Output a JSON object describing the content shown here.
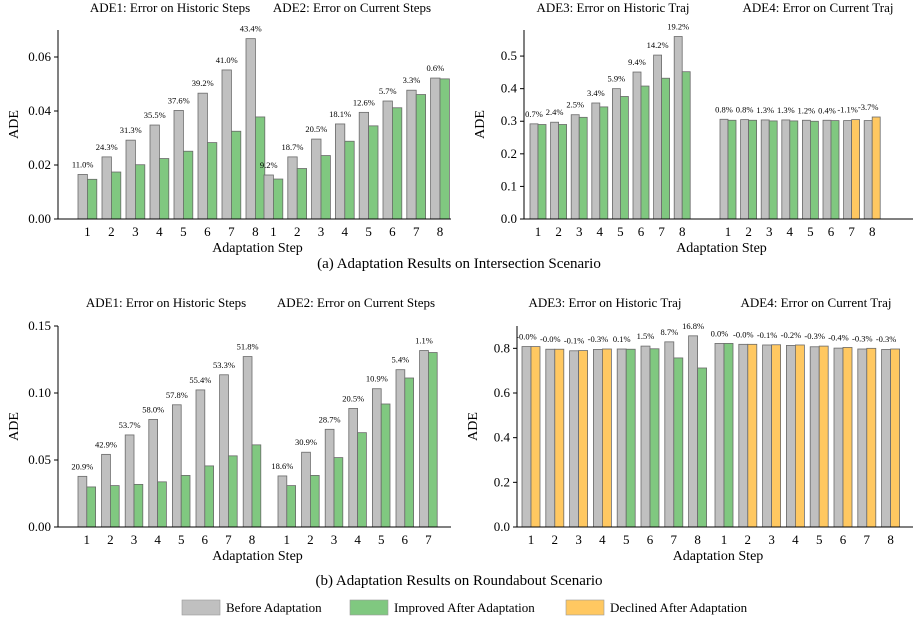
{
  "colors": {
    "before": "#c0c0c0",
    "improved": "#80c880",
    "declined": "#ffc861",
    "edge": "#6a6a6a"
  },
  "legend": {
    "before": "Before Adaptation",
    "improved": "Improved After Adaptation",
    "declined": "Declined After Adaptation"
  },
  "captions": {
    "a": "(a) Adaptation Results on Intersection Scenario",
    "b": "(b) Adaptation Results on Roundabout Scenario"
  },
  "chart_data": [
    {
      "type": "bar",
      "panel": "intersection-historic-current-steps",
      "ylabel": "ADE",
      "xlabel": "Adaptation Step",
      "ylim": [
        0,
        0.07
      ],
      "yticks": [
        "0.00",
        "0.02",
        "0.04",
        "0.06"
      ],
      "groups": [
        {
          "title": "ADE1: Error on Historic Steps",
          "categories": [
            "1",
            "2",
            "3",
            "4",
            "5",
            "6",
            "7",
            "8"
          ],
          "before": [
            0.0165,
            0.023,
            0.0292,
            0.0348,
            0.0402,
            0.0466,
            0.0552,
            0.0668
          ],
          "after": [
            0.0147,
            0.0174,
            0.0201,
            0.0224,
            0.0251,
            0.0283,
            0.0325,
            0.0378
          ],
          "status": [
            "improved",
            "improved",
            "improved",
            "improved",
            "improved",
            "improved",
            "improved",
            "improved"
          ],
          "labels": [
            "11.0%",
            "24.3%",
            "31.3%",
            "35.5%",
            "37.6%",
            "39.2%",
            "41.0%",
            "43.4%"
          ]
        },
        {
          "title": "ADE2: Error on Current Steps",
          "categories": [
            "1",
            "2",
            "3",
            "4",
            "5",
            "6",
            "7",
            "8"
          ],
          "before": [
            0.0163,
            0.023,
            0.0296,
            0.0352,
            0.0395,
            0.0437,
            0.0477,
            0.0522
          ],
          "after": [
            0.0148,
            0.0187,
            0.0235,
            0.0288,
            0.0345,
            0.0412,
            0.0461,
            0.0519
          ],
          "status": [
            "improved",
            "improved",
            "improved",
            "improved",
            "improved",
            "improved",
            "improved",
            "improved"
          ],
          "labels": [
            "9.2%",
            "18.7%",
            "20.5%",
            "18.1%",
            "12.6%",
            "5.7%",
            "3.3%",
            "0.6%"
          ]
        }
      ]
    },
    {
      "type": "bar",
      "panel": "intersection-historic-current-traj",
      "ylabel": "ADE",
      "xlabel": "Adaptation Step",
      "ylim": [
        0,
        0.58
      ],
      "yticks": [
        "0.0",
        "0.1",
        "0.2",
        "0.3",
        "0.4",
        "0.5"
      ],
      "groups": [
        {
          "title": "ADE3: Error on Historic Traj",
          "categories": [
            "1",
            "2",
            "3",
            "4",
            "5",
            "6",
            "7",
            "8"
          ],
          "before": [
            0.292,
            0.297,
            0.32,
            0.356,
            0.4,
            0.451,
            0.503,
            0.56
          ],
          "after": [
            0.29,
            0.29,
            0.312,
            0.344,
            0.376,
            0.408,
            0.432,
            0.452
          ],
          "status": [
            "improved",
            "improved",
            "improved",
            "improved",
            "improved",
            "improved",
            "improved",
            "improved"
          ],
          "labels": [
            "0.7%",
            "2.4%",
            "2.5%",
            "3.4%",
            "5.9%",
            "9.4%",
            "14.2%",
            "19.2%"
          ]
        },
        {
          "title": "ADE4: Error on Current Traj",
          "categories": [
            "1",
            "2",
            "3",
            "4",
            "5",
            "6",
            "7",
            "8"
          ],
          "before": [
            0.306,
            0.305,
            0.304,
            0.304,
            0.303,
            0.303,
            0.302,
            0.302
          ],
          "after": [
            0.303,
            0.303,
            0.301,
            0.301,
            0.3,
            0.302,
            0.305,
            0.313
          ],
          "status": [
            "improved",
            "improved",
            "improved",
            "improved",
            "improved",
            "improved",
            "declined",
            "declined"
          ],
          "labels": [
            "0.8%",
            "0.8%",
            "1.3%",
            "1.3%",
            "1.2%",
            "0.4%",
            "-1.1%",
            "-3.7%"
          ]
        }
      ]
    },
    {
      "type": "bar",
      "panel": "roundabout-historic-current-steps",
      "ylabel": "ADE",
      "xlabel": "Adaptation Step",
      "ylim": [
        0,
        0.15
      ],
      "yticks": [
        "0.00",
        "0.05",
        "0.10",
        "0.15"
      ],
      "groups": [
        {
          "title": "ADE1: Error on Historic Steps",
          "categories": [
            "1",
            "2",
            "3",
            "4",
            "5",
            "6",
            "7",
            "8"
          ],
          "before": [
            0.0378,
            0.0542,
            0.0687,
            0.0803,
            0.0912,
            0.1023,
            0.1136,
            0.1272
          ],
          "after": [
            0.0299,
            0.0309,
            0.0318,
            0.0337,
            0.0385,
            0.0456,
            0.0531,
            0.0613
          ],
          "status": [
            "improved",
            "improved",
            "improved",
            "improved",
            "improved",
            "improved",
            "improved",
            "improved"
          ],
          "labels": [
            "20.9%",
            "42.9%",
            "53.7%",
            "58.0%",
            "57.8%",
            "55.4%",
            "53.3%",
            "51.8%"
          ]
        },
        {
          "title": "ADE2: Error on Current Steps",
          "categories": [
            "1",
            "2",
            "3",
            "4",
            "5",
            "6",
            "7"
          ],
          "before": [
            0.0381,
            0.0558,
            0.0729,
            0.0885,
            0.1032,
            0.1174,
            0.1317
          ],
          "after": [
            0.0309,
            0.0385,
            0.0518,
            0.0704,
            0.0918,
            0.1112,
            0.1302
          ],
          "status": [
            "improved",
            "improved",
            "improved",
            "improved",
            "improved",
            "improved",
            "improved"
          ],
          "labels": [
            "18.6%",
            "30.9%",
            "28.7%",
            "20.5%",
            "10.9%",
            "5.4%",
            "1.1%"
          ]
        }
      ]
    },
    {
      "type": "bar",
      "panel": "roundabout-historic-current-traj",
      "ylabel": "ADE",
      "xlabel": "Adaptation Step",
      "ylim": [
        0,
        0.9
      ],
      "yticks": [
        "0.0",
        "0.2",
        "0.4",
        "0.6",
        "0.8"
      ],
      "groups": [
        {
          "title": "ADE3: Error on Historic Traj",
          "categories": [
            "1",
            "2",
            "3",
            "4",
            "5",
            "6",
            "7",
            "8"
          ],
          "before": [
            0.808,
            0.796,
            0.789,
            0.795,
            0.797,
            0.81,
            0.829,
            0.856
          ],
          "after": [
            0.808,
            0.796,
            0.79,
            0.797,
            0.796,
            0.798,
            0.757,
            0.712
          ],
          "status": [
            "declined",
            "declined",
            "declined",
            "declined",
            "improved",
            "improved",
            "improved",
            "improved"
          ],
          "labels": [
            "-0.0%",
            "-0.0%",
            "-0.1%",
            "-0.3%",
            "0.1%",
            "1.5%",
            "8.7%",
            "16.8%"
          ]
        },
        {
          "title": "ADE4: Error on Current Traj",
          "categories": [
            "1",
            "2",
            "3",
            "4",
            "5",
            "6",
            "7",
            "8"
          ],
          "before": [
            0.822,
            0.818,
            0.815,
            0.813,
            0.807,
            0.801,
            0.797,
            0.795
          ],
          "after": [
            0.822,
            0.818,
            0.816,
            0.815,
            0.81,
            0.804,
            0.8,
            0.797
          ],
          "status": [
            "improved",
            "declined",
            "declined",
            "declined",
            "declined",
            "declined",
            "declined",
            "declined"
          ],
          "labels": [
            "0.0%",
            "-0.0%",
            "-0.1%",
            "-0.2%",
            "-0.3%",
            "-0.4%",
            "-0.3%",
            "-0.3%"
          ]
        }
      ]
    }
  ]
}
